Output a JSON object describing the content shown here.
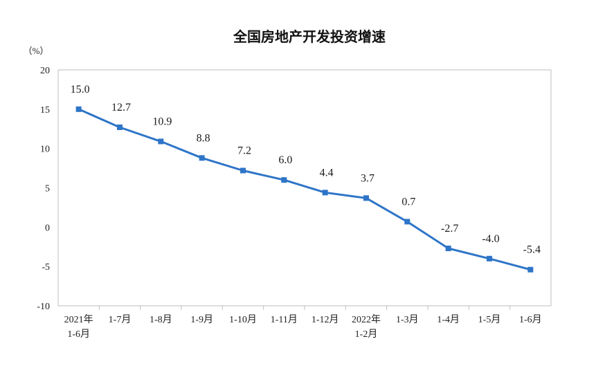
{
  "chart_data": {
    "type": "line",
    "title": "全国房地产开发投资增速",
    "ylabel": "（%）",
    "xlabel": "",
    "ylim": [
      -10,
      20
    ],
    "yticks": [
      20,
      15,
      10,
      5,
      0,
      -5,
      -10
    ],
    "ytick_labels": [
      "20",
      "15",
      "10",
      "5",
      "0",
      "-5",
      "-10"
    ],
    "categories": [
      [
        "2021年",
        "1-6月"
      ],
      [
        "1-7月"
      ],
      [
        "1-8月"
      ],
      [
        "1-9月"
      ],
      [
        "1-10月"
      ],
      [
        "1-11月"
      ],
      [
        "1-12月"
      ],
      [
        "2022年",
        "1-2月"
      ],
      [
        "1-3月"
      ],
      [
        "1-4月"
      ],
      [
        "1-5月"
      ],
      [
        "1-6月"
      ]
    ],
    "series": [
      {
        "values": [
          15.0,
          12.7,
          10.9,
          8.8,
          7.2,
          6.0,
          4.4,
          3.7,
          0.7,
          -2.7,
          -4.0,
          -5.4
        ],
        "labels": [
          "15.0",
          "12.7",
          "10.9",
          "8.8",
          "7.2",
          "6.0",
          "4.4",
          "3.7",
          "0.7",
          "-2.7",
          "-4.0",
          "-5.4"
        ],
        "color": "#2e75c8",
        "marker": "square"
      }
    ],
    "grid": false,
    "legend": "none"
  }
}
